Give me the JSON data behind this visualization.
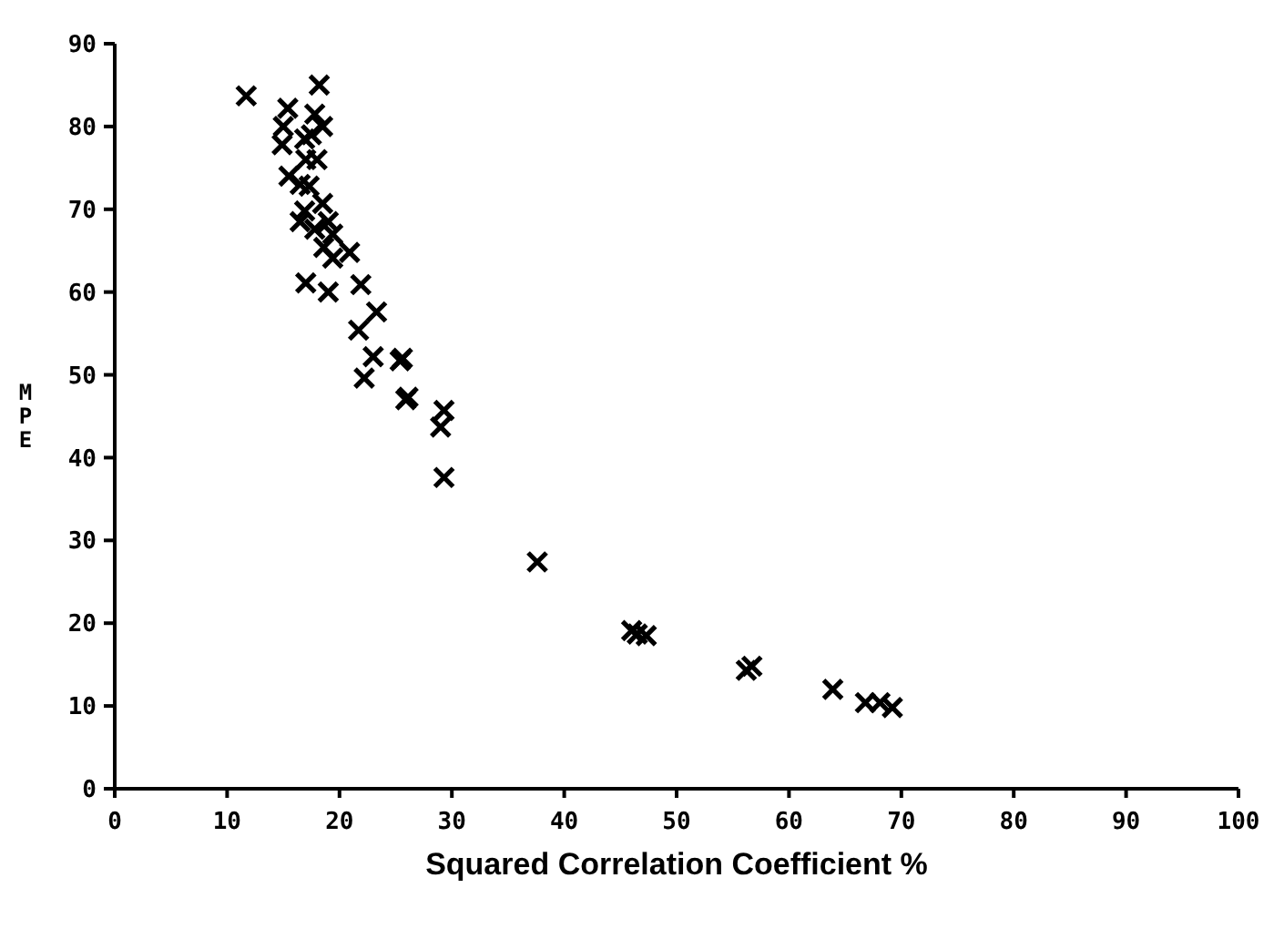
{
  "chart_data": {
    "type": "scatter",
    "xlabel": "Squared Correlation Coefficient  %",
    "ylabel": "MPE",
    "marker": "cross",
    "grid": false,
    "xlim": [
      0,
      100
    ],
    "xticks": [
      0,
      10,
      20,
      30,
      40,
      50,
      60,
      70,
      80,
      90,
      100
    ],
    "ylim": [
      0,
      90
    ],
    "yticks": [
      0,
      10,
      20,
      30,
      40,
      50,
      60,
      70,
      80,
      90
    ],
    "series": [
      {
        "color": "#000000",
        "x": [
          11.7,
          18.2,
          15.4,
          14.9,
          16.9,
          17.8,
          18.5,
          17.3,
          16.9,
          18.5,
          16.5,
          17.8,
          19,
          18.6,
          19.4,
          20.9,
          19.4,
          17,
          19,
          21.9,
          21.7,
          23.3,
          23,
          22.2,
          25.4,
          25.6,
          25.9,
          26.1,
          29,
          29.3,
          29.3,
          37.6,
          46,
          46.5,
          47.3,
          56.2,
          56.7,
          63.9,
          66.8,
          68.1,
          69.2,
          15,
          17.5,
          18,
          15.5,
          16.5,
          17
        ],
        "values": [
          83.7,
          85,
          82.2,
          77.8,
          78.5,
          81.5,
          80,
          72.8,
          69.8,
          70.7,
          68.5,
          67.6,
          68.5,
          65.4,
          64.1,
          64.8,
          67,
          61.1,
          60,
          60.9,
          55.4,
          57.6,
          52.2,
          49.6,
          51.7,
          52,
          47,
          47.3,
          43.7,
          45.7,
          37.6,
          27.4,
          19.1,
          18.7,
          18.5,
          14.3,
          14.8,
          12,
          10.4,
          10.4,
          9.8,
          80,
          79,
          76,
          74,
          73,
          76
        ]
      }
    ]
  }
}
